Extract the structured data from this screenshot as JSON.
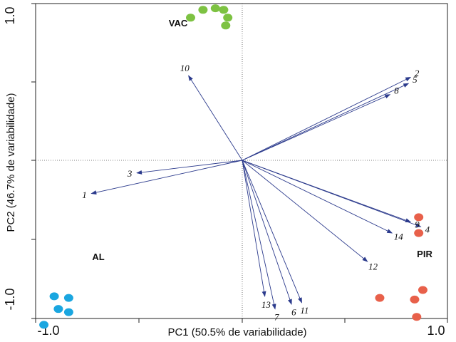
{
  "chart_data": {
    "type": "scatter",
    "subtype": "pca-biplot",
    "xlabel": "PC1 (50.5% de variabilidade)",
    "ylabel": "PC2 (46.7% de variabilidade)",
    "xlim": [
      -1.0,
      1.0
    ],
    "ylim": [
      -1.0,
      1.0
    ],
    "x_tick_labels": [
      "-1.0",
      "1.0"
    ],
    "y_tick_labels": [
      "1.0",
      "-1.0"
    ],
    "grid": false,
    "reference_lines": "dotted lines at x=0 and y=0",
    "groups": [
      {
        "name": "VAC",
        "color": "#7dc242",
        "points": [
          [
            -0.19,
            0.96
          ],
          [
            -0.13,
            0.97
          ],
          [
            -0.09,
            0.96
          ],
          [
            -0.07,
            0.91
          ],
          [
            -0.08,
            0.86
          ],
          [
            -0.25,
            0.91
          ]
        ]
      },
      {
        "name": "PIR",
        "color": "#e8604a",
        "points": [
          [
            0.86,
            -0.36
          ],
          [
            0.86,
            -0.46
          ],
          [
            0.88,
            -0.82
          ],
          [
            0.84,
            -0.88
          ],
          [
            0.67,
            -0.87
          ],
          [
            0.85,
            -0.99
          ]
        ]
      },
      {
        "name": "AL",
        "color": "#1aa6e0",
        "points": [
          [
            -0.91,
            -0.86
          ],
          [
            -0.89,
            -0.94
          ],
          [
            -0.84,
            -0.87
          ],
          [
            -0.84,
            -0.96
          ],
          [
            -0.96,
            -1.04
          ]
        ]
      }
    ],
    "vectors": [
      {
        "label": "1",
        "x": -0.73,
        "y": -0.21
      },
      {
        "label": "2",
        "x": 0.82,
        "y": 0.53
      },
      {
        "label": "3",
        "x": -0.51,
        "y": -0.08
      },
      {
        "label": "4",
        "x": 0.87,
        "y": -0.42
      },
      {
        "label": "5",
        "x": 0.81,
        "y": 0.49
      },
      {
        "label": "6",
        "x": 0.24,
        "y": -0.91
      },
      {
        "label": "7",
        "x": 0.16,
        "y": -0.94
      },
      {
        "label": "8",
        "x": 0.72,
        "y": 0.42
      },
      {
        "label": "9",
        "x": 0.82,
        "y": -0.39
      },
      {
        "label": "10",
        "x": -0.26,
        "y": 0.54
      },
      {
        "label": "11",
        "x": 0.29,
        "y": -0.9
      },
      {
        "label": "12",
        "x": 0.61,
        "y": -0.64
      },
      {
        "label": "13",
        "x": 0.11,
        "y": -0.86
      },
      {
        "label": "14",
        "x": 0.73,
        "y": -0.46
      }
    ],
    "vector_color": "#2b3a8c"
  }
}
